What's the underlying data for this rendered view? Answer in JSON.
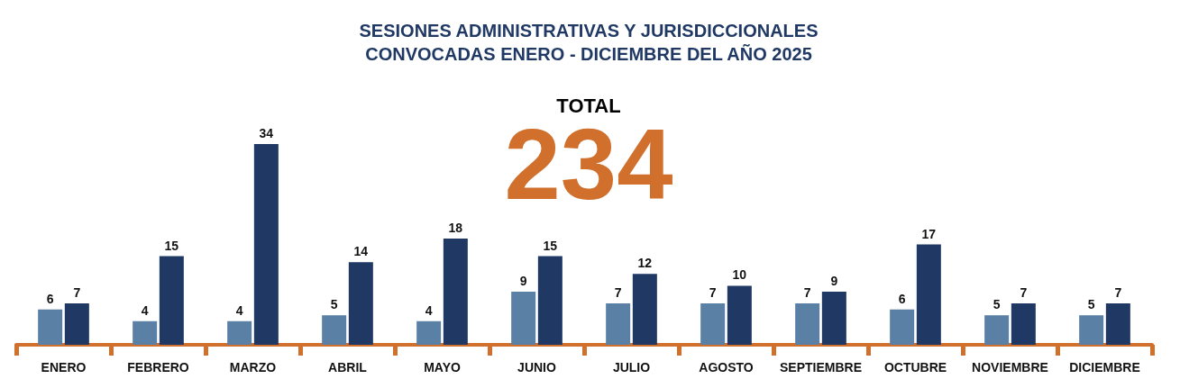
{
  "chart_data": {
    "type": "bar",
    "title": "SESIONES ADMINISTRATIVAS Y JURISDICCIONALES\nCONVOCADAS ENERO - DICIEMBRE DEL AÑO 2025",
    "categories": [
      "ENERO",
      "FEBRERO",
      "MARZO",
      "ABRIL",
      "MAYO",
      "JUNIO",
      "JULIO",
      "AGOSTO",
      "SEPTIEMBRE",
      "OCTUBRE",
      "NOVIEMBRE",
      "DICIEMBRE"
    ],
    "series": [
      {
        "color": "#5b80a5",
        "values": [
          6,
          4,
          4,
          5,
          4,
          9,
          7,
          7,
          7,
          6,
          5,
          5
        ]
      },
      {
        "color": "#1f3864",
        "values": [
          7,
          15,
          34,
          14,
          18,
          15,
          12,
          10,
          9,
          17,
          7,
          7
        ]
      }
    ],
    "data_labels": true,
    "annotations": [
      "TOTAL",
      "234"
    ]
  }
}
